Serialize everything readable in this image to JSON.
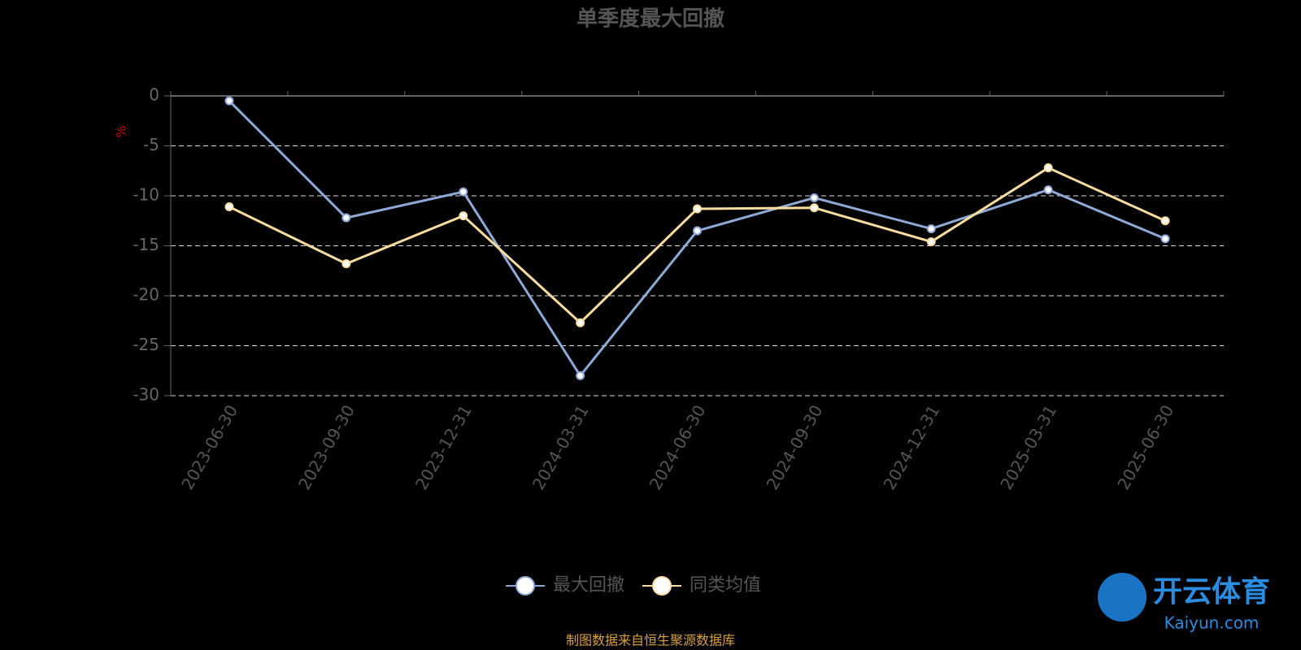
{
  "chart_data": {
    "type": "line",
    "title": "单季度最大回撤",
    "y_label": "%",
    "categories": [
      "2023-06-30",
      "2023-09-30",
      "2023-12-31",
      "2024-03-31",
      "2024-06-30",
      "2024-09-30",
      "2024-12-31",
      "2025-03-31",
      "2025-06-30"
    ],
    "series": [
      {
        "name": "最大回撤",
        "color": "#8fa9d6",
        "values": [
          -0.5,
          -12.2,
          -9.6,
          -28.0,
          -13.5,
          -10.2,
          -13.3,
          -9.4,
          -14.3
        ]
      },
      {
        "name": "同类均值",
        "color": "#f8dca0",
        "values": [
          -11.1,
          -16.8,
          -12.0,
          -22.7,
          -11.3,
          -11.2,
          -14.6,
          -7.2,
          -12.5
        ]
      }
    ],
    "ylim": [
      -30,
      0
    ],
    "yticks": [
      0,
      -5,
      -10,
      -15,
      -20,
      -25,
      -30
    ],
    "grid": true,
    "legend": "bottom",
    "source": "制图数据来自恒生聚源数据库",
    "watermark": {
      "title": "开云体育",
      "subtitle": "Kaiyun.com"
    }
  }
}
